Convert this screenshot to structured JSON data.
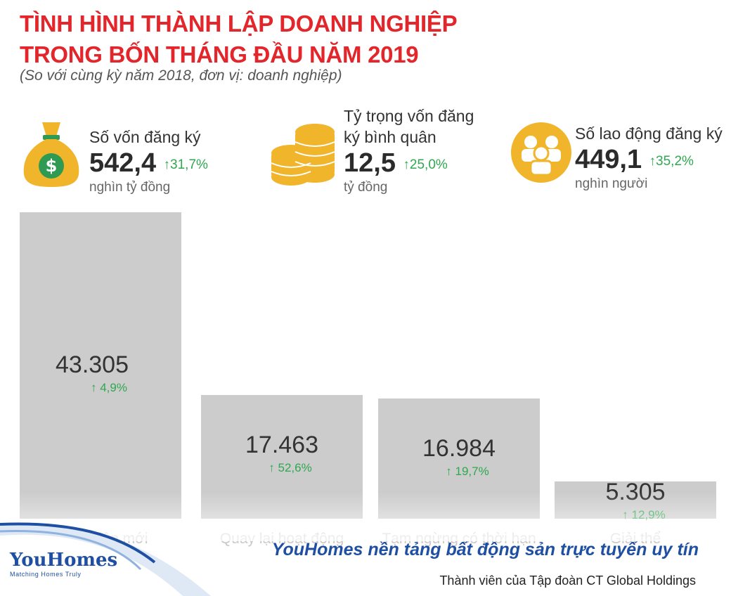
{
  "title_line1": "TÌNH HÌNH THÀNH LẬP DOANH NGHIỆP",
  "title_line2": "TRONG BỐN THÁNG ĐẦU NĂM 2019",
  "subtitle": "(So với cùng kỳ năm 2018, đơn vị: doanh nghiệp)",
  "stats": [
    {
      "label": "Số vốn đăng ký",
      "label2": "",
      "value": "542,4",
      "change": "31,7%",
      "unit": "nghìn tỷ đồng",
      "icon": "money-bag-icon"
    },
    {
      "label": "Tỷ trọng vốn đăng",
      "label2": "ký bình quân",
      "value": "12,5",
      "change": "25,0%",
      "unit": "tỷ đồng",
      "icon": "coins-icon"
    },
    {
      "label": "Số lao động đăng ký",
      "label2": "",
      "value": "449,1",
      "change": "35,2%",
      "unit": "nghìn người",
      "icon": "people-icon"
    }
  ],
  "chart_data": {
    "type": "bar",
    "categories": [
      "Thành lập mới",
      "Quay lại hoạt động",
      "Tạm ngừng có thời hạn",
      "Giải thể"
    ],
    "values": [
      43305,
      17463,
      16984,
      5305
    ],
    "value_labels": [
      "43.305",
      "17.463",
      "16.984",
      "5.305"
    ],
    "changes": [
      "4,9%",
      "52,6%",
      "19,7%",
      "12,9%"
    ],
    "ylim": [
      0,
      43305
    ],
    "bar_color": "#cccccc",
    "change_color": "#2fa84f",
    "grid": false
  },
  "footer": {
    "logo_text": "YouHomes",
    "logo_tagline": "Matching Homes Truly",
    "slogan": "YouHomes nền tảng bất động sản trực tuyến uy tín",
    "member": "Thành viên của Tập đoàn CT Global Holdings"
  },
  "colors": {
    "title": "#e3262b",
    "accent_green": "#2fa84f",
    "icon_gold": "#f1b52c",
    "brand_blue": "#1e4fa3"
  }
}
